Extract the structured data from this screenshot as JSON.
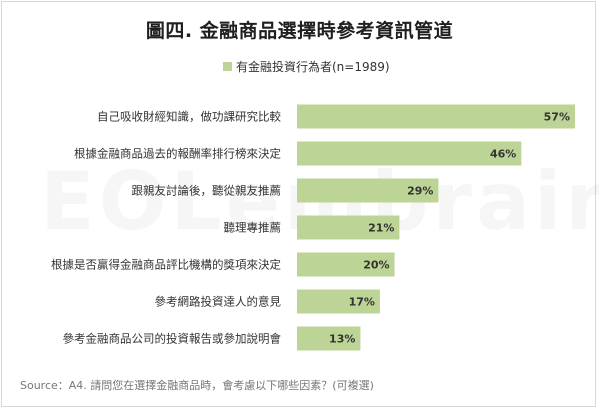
{
  "title": "圖四. 金融商品選擇時參考資訊管道",
  "watermark": "EOLembrain",
  "source": "Source：A4. 請問您在選擇金融商品時，會考慮以下哪些因素？(可複選)",
  "colors": {
    "bar": "#bcd596",
    "label": "#333333"
  },
  "chart_data": {
    "type": "bar",
    "orientation": "horizontal",
    "title": "圖四. 金融商品選擇時參考資訊管道",
    "categories": [
      "自己吸收財經知識，做功課研究比較",
      "根據金融商品過去的報酬率排行榜來決定",
      "跟親友討論後，聽從親友推薦",
      "聽理專推薦",
      "根據是否贏得金融商品評比機構的獎項來決定",
      "參考網路投資達人的意見",
      "參考金融商品公司的投資報告或參加說明會"
    ],
    "series": [
      {
        "name": "有金融投資行為者(n=1989)",
        "values": [
          57,
          46,
          29,
          21,
          20,
          17,
          13
        ],
        "labels": [
          "57%",
          "46%",
          "29%",
          "21%",
          "20%",
          "17%",
          "13%"
        ]
      }
    ],
    "xlim": [
      0,
      57
    ],
    "legend_position": "top-center",
    "grid": false
  }
}
